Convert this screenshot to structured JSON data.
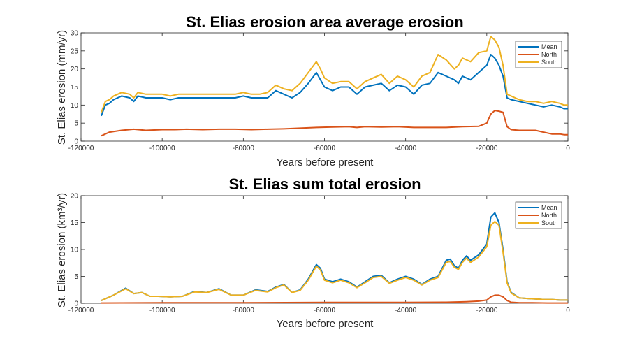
{
  "chart_data": [
    {
      "type": "line",
      "title": "St. Elias erosion area average erosion",
      "xlabel": "Years before present",
      "ylabel": "St. Elias erosion (mm/yr)",
      "xlim": [
        -120000,
        0
      ],
      "ylim": [
        0,
        30
      ],
      "xticks": [
        -120000,
        -100000,
        -80000,
        -60000,
        -40000,
        -20000,
        0
      ],
      "xtick_labels": [
        "-120000",
        "-100000",
        "-80000",
        "-60000",
        "-40000",
        "-20000",
        "0"
      ],
      "yticks": [
        0,
        5,
        10,
        15,
        20,
        25,
        30
      ],
      "ytick_labels": [
        "0",
        "5",
        "10",
        "15",
        "20",
        "25",
        "30"
      ],
      "legend_position": "top-right",
      "grid": false,
      "series": [
        {
          "name": "Mean",
          "color": "#0072BD",
          "x": [
            -115000,
            -114000,
            -113000,
            -112000,
            -110000,
            -108000,
            -107000,
            -106000,
            -104000,
            -102000,
            -100000,
            -98000,
            -96000,
            -94000,
            -92000,
            -90000,
            -88000,
            -86000,
            -84000,
            -82000,
            -80000,
            -78000,
            -76000,
            -74000,
            -72000,
            -70000,
            -68000,
            -66000,
            -64000,
            -62000,
            -61000,
            -60000,
            -58000,
            -56000,
            -54000,
            -52000,
            -50000,
            -48000,
            -46000,
            -44000,
            -42000,
            -40000,
            -38000,
            -36000,
            -34000,
            -32000,
            -30000,
            -28000,
            -27000,
            -26000,
            -24000,
            -22000,
            -20000,
            -19000,
            -18000,
            -17000,
            -16000,
            -15000,
            -14000,
            -12000,
            -10000,
            -8000,
            -6000,
            -4000,
            -2000,
            -1000,
            0
          ],
          "y": [
            7,
            10,
            10.5,
            11.5,
            12.5,
            12,
            11,
            12.5,
            12,
            12,
            12,
            11.5,
            12,
            12,
            12,
            12,
            12,
            12,
            12,
            12,
            12.5,
            12,
            12,
            12,
            14,
            13,
            12,
            13.5,
            16,
            19,
            17,
            15,
            14,
            15,
            15,
            13,
            15,
            15.5,
            16,
            14,
            15.5,
            15,
            13,
            15.5,
            16,
            19,
            18,
            17,
            16,
            18,
            17,
            19,
            21,
            24,
            23,
            21,
            18,
            12,
            11.5,
            11,
            10.5,
            10,
            9.5,
            10,
            9.5,
            9,
            9
          ]
        },
        {
          "name": "North",
          "color": "#D95319",
          "x": [
            -115000,
            -113000,
            -110000,
            -107000,
            -104000,
            -100000,
            -97000,
            -94000,
            -90000,
            -86000,
            -82000,
            -78000,
            -74000,
            -70000,
            -66000,
            -62000,
            -58000,
            -54000,
            -52000,
            -50000,
            -46000,
            -42000,
            -38000,
            -34000,
            -30000,
            -26000,
            -22000,
            -20000,
            -19000,
            -18000,
            -17000,
            -16000,
            -15000,
            -14000,
            -12000,
            -10000,
            -8000,
            -6000,
            -4000,
            -2000,
            -1000,
            0
          ],
          "y": [
            1.5,
            2.5,
            3,
            3.3,
            3,
            3.2,
            3.2,
            3.3,
            3.2,
            3.3,
            3.3,
            3.2,
            3.3,
            3.4,
            3.6,
            3.8,
            3.9,
            4,
            3.8,
            4,
            3.9,
            4,
            3.8,
            3.8,
            3.8,
            4,
            4.1,
            5,
            7.5,
            8.5,
            8.3,
            8,
            4,
            3.2,
            3,
            3,
            3,
            2.5,
            2,
            2,
            1.8,
            1.8
          ]
        },
        {
          "name": "South",
          "color": "#EDB120",
          "x": [
            -115000,
            -114000,
            -113000,
            -112000,
            -110000,
            -108000,
            -107000,
            -106000,
            -104000,
            -102000,
            -100000,
            -98000,
            -96000,
            -94000,
            -92000,
            -90000,
            -88000,
            -86000,
            -84000,
            -82000,
            -80000,
            -78000,
            -76000,
            -74000,
            -72000,
            -70000,
            -68000,
            -66000,
            -64000,
            -62000,
            -61000,
            -60000,
            -58000,
            -56000,
            -54000,
            -52000,
            -50000,
            -48000,
            -46000,
            -44000,
            -42000,
            -40000,
            -38000,
            -36000,
            -34000,
            -32000,
            -30000,
            -28000,
            -27000,
            -26000,
            -24000,
            -22000,
            -20000,
            -19000,
            -18000,
            -17000,
            -16000,
            -15000,
            -14000,
            -12000,
            -10000,
            -8000,
            -6000,
            -4000,
            -2000,
            -1000,
            0
          ],
          "y": [
            8,
            11,
            11.5,
            12.5,
            13.5,
            13,
            12,
            13.5,
            13,
            13,
            13,
            12.5,
            13,
            13,
            13,
            13,
            13,
            13,
            13,
            13,
            13.5,
            13,
            13,
            13.5,
            15.5,
            14.5,
            14,
            16,
            19,
            22,
            20,
            17.5,
            16,
            16.5,
            16.5,
            14.5,
            16.5,
            17.5,
            18.5,
            16,
            18,
            17,
            15,
            18,
            19,
            24,
            22.5,
            20,
            21,
            23,
            22,
            24.5,
            25,
            29,
            28,
            26,
            21,
            13,
            12.5,
            11.5,
            11,
            11,
            10.5,
            11,
            10.5,
            10,
            10
          ]
        }
      ]
    },
    {
      "type": "line",
      "title": "St. Elias sum total erosion",
      "xlabel": "Years before present",
      "ylabel": "St. Elias erosion (km³/yr)",
      "xlim": [
        -120000,
        0
      ],
      "ylim": [
        0,
        20
      ],
      "xticks": [
        -120000,
        -100000,
        -80000,
        -60000,
        -40000,
        -20000,
        0
      ],
      "xtick_labels": [
        "-120000",
        "-100000",
        "-80000",
        "-60000",
        "-40000",
        "-20000",
        "0"
      ],
      "yticks": [
        0,
        5,
        10,
        15,
        20
      ],
      "ytick_labels": [
        "0",
        "5",
        "10",
        "15",
        "20"
      ],
      "legend_position": "top-right",
      "grid": false,
      "series": [
        {
          "name": "Mean",
          "color": "#0072BD",
          "x": [
            -115000,
            -112000,
            -109000,
            -107000,
            -105000,
            -103000,
            -101000,
            -98000,
            -95000,
            -92000,
            -89000,
            -86000,
            -83000,
            -80000,
            -77000,
            -74000,
            -72000,
            -70000,
            -68000,
            -66000,
            -64000,
            -62000,
            -61000,
            -60000,
            -58000,
            -56000,
            -54000,
            -52000,
            -50000,
            -48000,
            -46000,
            -44000,
            -42000,
            -40000,
            -38000,
            -36000,
            -34000,
            -32000,
            -30000,
            -29000,
            -28000,
            -27000,
            -26000,
            -25000,
            -24000,
            -22000,
            -20000,
            -19000,
            -18000,
            -17000,
            -16000,
            -15000,
            -14000,
            -12000,
            -10000,
            -8000,
            -6000,
            -4000,
            -2000,
            0
          ],
          "y": [
            0.5,
            1.5,
            2.8,
            1.8,
            2,
            1.3,
            1.3,
            1.2,
            1.3,
            2.2,
            2,
            2.7,
            1.5,
            1.5,
            2.5,
            2.2,
            3,
            3.5,
            2,
            2.5,
            4.5,
            7.2,
            6.5,
            4.5,
            4,
            4.5,
            4,
            3,
            4,
            5,
            5.2,
            3.8,
            4.5,
            5,
            4.5,
            3.5,
            4.5,
            5,
            8,
            8.2,
            7,
            6.5,
            8,
            8.8,
            8,
            9,
            11,
            16,
            16.8,
            15,
            10,
            4,
            2,
            1,
            0.9,
            0.8,
            0.7,
            0.7,
            0.6,
            0.6
          ]
        },
        {
          "name": "North",
          "color": "#D95319",
          "x": [
            -115000,
            -100000,
            -80000,
            -60000,
            -40000,
            -30000,
            -25000,
            -22000,
            -20000,
            -19000,
            -18000,
            -17000,
            -16000,
            -15000,
            -14000,
            -12000,
            -10000,
            -5000,
            0
          ],
          "y": [
            0.05,
            0.1,
            0.1,
            0.15,
            0.15,
            0.2,
            0.3,
            0.4,
            0.6,
            1.2,
            1.5,
            1.5,
            1.2,
            0.5,
            0.2,
            0.1,
            0.1,
            0.05,
            0.05
          ]
        },
        {
          "name": "South",
          "color": "#EDB120",
          "x": [
            -115000,
            -112000,
            -109000,
            -107000,
            -105000,
            -103000,
            -101000,
            -98000,
            -95000,
            -92000,
            -89000,
            -86000,
            -83000,
            -80000,
            -77000,
            -74000,
            -72000,
            -70000,
            -68000,
            -66000,
            -64000,
            -62000,
            -61000,
            -60000,
            -58000,
            -56000,
            -54000,
            -52000,
            -50000,
            -48000,
            -46000,
            -44000,
            -42000,
            -40000,
            -38000,
            -36000,
            -34000,
            -32000,
            -30000,
            -29000,
            -28000,
            -27000,
            -26000,
            -25000,
            -24000,
            -22000,
            -20000,
            -19000,
            -18000,
            -17000,
            -16000,
            -15000,
            -14000,
            -12000,
            -10000,
            -8000,
            -6000,
            -4000,
            -2000,
            0
          ],
          "y": [
            0.5,
            1.5,
            2.7,
            1.8,
            2,
            1.3,
            1.3,
            1.2,
            1.3,
            2.1,
            2,
            2.6,
            1.5,
            1.5,
            2.4,
            2.1,
            2.9,
            3.4,
            2,
            2.4,
            4.3,
            6.9,
            6.2,
            4.3,
            3.8,
            4.3,
            3.8,
            2.9,
            3.8,
            4.8,
            5,
            3.7,
            4.3,
            4.8,
            4.3,
            3.4,
            4.3,
            4.8,
            7.6,
            7.8,
            6.7,
            6.3,
            7.6,
            8.4,
            7.6,
            8.6,
            10.5,
            14.5,
            15.2,
            14.5,
            9.5,
            3.8,
            1.9,
            1,
            0.9,
            0.8,
            0.7,
            0.7,
            0.6,
            0.6
          ]
        }
      ]
    }
  ]
}
